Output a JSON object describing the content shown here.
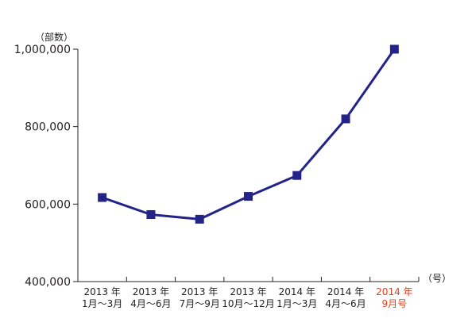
{
  "chart_data": {
    "type": "line",
    "title": "",
    "ylabel": "（部数）",
    "xlabel": "（号）",
    "ylim": [
      400000,
      1000000
    ],
    "yticks": [
      {
        "value": 400000,
        "label": "400,000"
      },
      {
        "value": 600000,
        "label": "600,000"
      },
      {
        "value": 800000,
        "label": "800,000"
      },
      {
        "value": 1000000,
        "label": "1,000,000"
      }
    ],
    "categories": [
      {
        "line1": "2013 年",
        "line2": "1月～3月",
        "highlight": false
      },
      {
        "line1": "2013 年",
        "line2": "4月～6月",
        "highlight": false
      },
      {
        "line1": "2013 年",
        "line2": "7月～9月",
        "highlight": false
      },
      {
        "line1": "2013 年",
        "line2": "10月～12月",
        "highlight": false
      },
      {
        "line1": "2014 年",
        "line2": "1月～3月",
        "highlight": false
      },
      {
        "line1": "2014 年",
        "line2": "4月～6月",
        "highlight": false
      },
      {
        "line1": "2014 年",
        "line2": "9月号",
        "highlight": true
      }
    ],
    "series": [
      {
        "values": [
          617000,
          573000,
          561000,
          620000,
          674000,
          820000,
          1000000
        ]
      }
    ],
    "grid": false,
    "colors": {
      "series": "#232388",
      "highlight_label": "#e2401c",
      "axis": "#231f20",
      "text": "#231f20"
    }
  }
}
